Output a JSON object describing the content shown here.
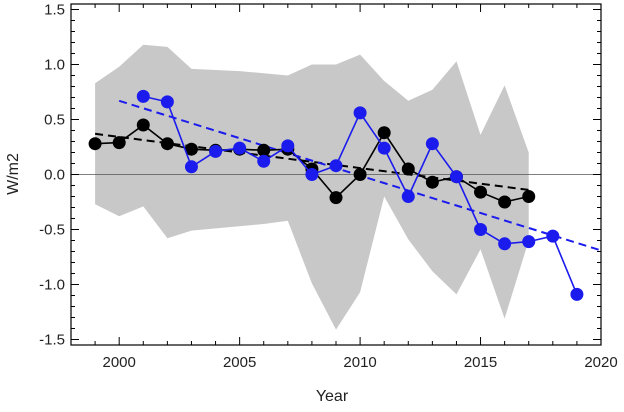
{
  "chart_data": {
    "type": "line",
    "title": "",
    "xlabel": "Year",
    "ylabel": "W/m2",
    "xlim": [
      1998,
      2020
    ],
    "ylim": [
      -1.55,
      1.55
    ],
    "x_ticks": [
      2000,
      2005,
      2010,
      2015,
      2020
    ],
    "y_ticks": [
      -1.5,
      -1.0,
      -0.5,
      0.0,
      0.5,
      1.0,
      1.5
    ],
    "x_tick_labels": [
      "2000",
      "2005",
      "2010",
      "2015",
      "2020"
    ],
    "y_tick_labels": [
      "-1.5",
      "-1.0",
      "-0.5",
      "0.0",
      "0.5",
      "1.0",
      "1.5"
    ],
    "zero_line": true,
    "grid": false,
    "band": {
      "color": "#c8c8c8",
      "x": [
        1999,
        2000,
        2001,
        2002,
        2003,
        2004,
        2005,
        2006,
        2007,
        2008,
        2009,
        2010,
        2011,
        2012,
        2013,
        2014,
        2015,
        2016,
        2017
      ],
      "upper": [
        0.83,
        0.98,
        1.18,
        1.16,
        0.96,
        0.95,
        0.94,
        0.92,
        0.9,
        1.0,
        1.0,
        1.09,
        0.85,
        0.67,
        0.77,
        1.03,
        0.36,
        0.81,
        0.2
      ],
      "lower": [
        -0.27,
        -0.38,
        -0.29,
        -0.58,
        -0.51,
        -0.49,
        -0.47,
        -0.45,
        -0.42,
        -0.99,
        -1.41,
        -1.07,
        -0.2,
        -0.59,
        -0.88,
        -1.09,
        -0.68,
        -1.31,
        -0.6
      ]
    },
    "series": [
      {
        "color": "#000000",
        "x": [
          1999,
          2000,
          2001,
          2002,
          2003,
          2004,
          2005,
          2006,
          2007,
          2008,
          2009,
          2010,
          2011,
          2012,
          2013,
          2014,
          2015,
          2016,
          2017
        ],
        "values": [
          0.28,
          0.29,
          0.45,
          0.28,
          0.23,
          0.22,
          0.23,
          0.22,
          0.23,
          0.05,
          -0.21,
          0.0,
          0.38,
          0.05,
          -0.07,
          -0.02,
          -0.16,
          -0.25,
          -0.2
        ]
      },
      {
        "color": "#1b1bee",
        "x": [
          2001,
          2002,
          2003,
          2004,
          2005,
          2006,
          2007,
          2008,
          2009,
          2010,
          2011,
          2012,
          2013,
          2014,
          2015,
          2016,
          2017,
          2018,
          2019
        ],
        "values": [
          0.71,
          0.66,
          0.07,
          0.21,
          0.24,
          0.12,
          0.26,
          0.0,
          0.08,
          0.56,
          0.24,
          -0.2,
          0.28,
          -0.02,
          -0.5,
          -0.63,
          -0.61,
          -0.56,
          -1.09
        ]
      }
    ],
    "trend_lines": [
      {
        "color": "#000000",
        "x": [
          1999,
          2017
        ],
        "y": [
          0.37,
          -0.14
        ]
      },
      {
        "color": "#1b1bee",
        "x": [
          2000,
          2020
        ],
        "y": [
          0.67,
          -0.69
        ]
      }
    ]
  }
}
